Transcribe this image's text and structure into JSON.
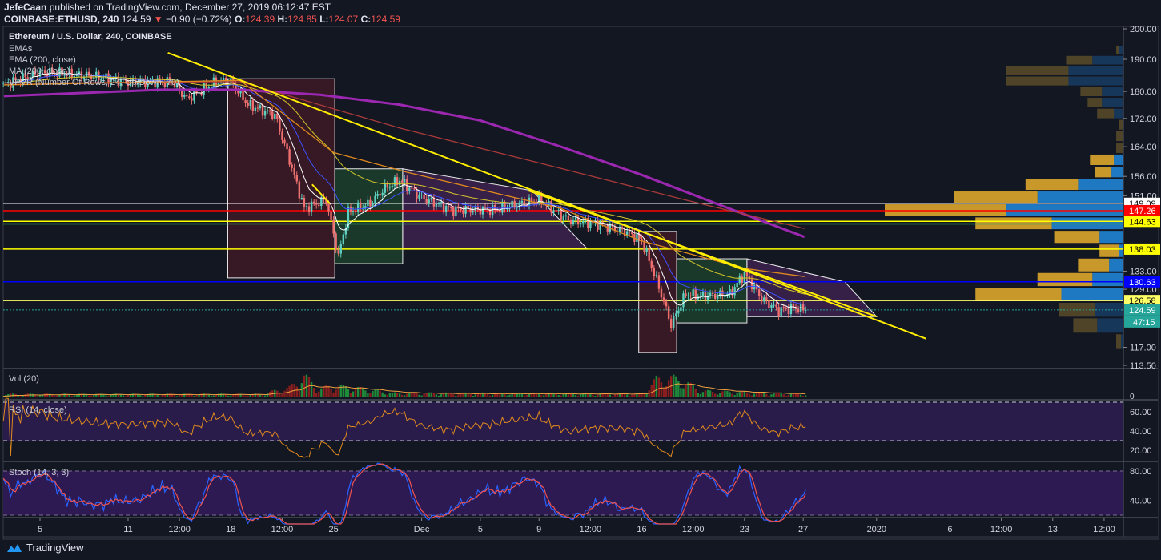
{
  "header": {
    "author": "JefeCaan",
    "published_text": "published on TradingView.com, December 27, 2019 06:12:47 EST",
    "symbol": "COINBASE:ETHUSD, 240",
    "last": "124.59",
    "change": "−0.90 (−0.72%)",
    "open_label": "O:",
    "open": "124.39",
    "high_label": "H:",
    "high": "124.85",
    "low_label": "L:",
    "low": "124.07",
    "close_label": "C:",
    "close": "124.59",
    "down_arrow_icon": "triangle-down-icon"
  },
  "legend": {
    "title": "Ethereum / U.S. Dollar, 240, COINBASE",
    "items": [
      "EMAs",
      "EMA (200, close)",
      "MA (200, close)",
      "VPVR (Number Of Rows, 24, Up/Down, 70)"
    ]
  },
  "panes": {
    "volume_label": "Vol (20)",
    "rsi_label": "RSI (14, close)",
    "stoch_label": "Stoch (14, 3, 3)"
  },
  "footer": {
    "brand": "TradingView",
    "logo_icon": "tradingview-logo-icon"
  },
  "colors": {
    "background": "#131722",
    "up": "#26a69a",
    "down": "#ef5350",
    "ma200": "#9c27b0",
    "ema200": "#e08a1e",
    "ema_mid": "#a83a3a",
    "trendline": "#ffee00",
    "vpvr_up": "#1e78c2",
    "vpvr_down": "#c8992a",
    "rsi": "#e08a1e",
    "stoch_k": "#2962ff",
    "stoch_d": "#ef5350",
    "osc_band": "#2a1c4a"
  },
  "chart_data": {
    "type": "candlestick",
    "title": "Ethereum / U.S. Dollar, 240, COINBASE",
    "y_scale": "log",
    "ylim": [
      113.5,
      200
    ],
    "y_ticks": [
      "200.00",
      "190.00",
      "180.00",
      "172.00",
      "164.00",
      "156.00",
      "151.00",
      "133.00",
      "129.00",
      "117.00",
      "113.50"
    ],
    "x_ticks": [
      {
        "label": "5",
        "date": "2019-11-05T00:00"
      },
      {
        "label": "11",
        "date": "2019-11-11T00:00"
      },
      {
        "label": "12:00",
        "date": "2019-11-14T12:00"
      },
      {
        "label": "18",
        "date": "2019-11-18T00:00"
      },
      {
        "label": "12:00",
        "date": "2019-11-21T12:00"
      },
      {
        "label": "25",
        "date": "2019-11-25T00:00"
      },
      {
        "label": "Dec",
        "date": "2019-12-01T00:00"
      },
      {
        "label": "5",
        "date": "2019-12-05T00:00"
      },
      {
        "label": "9",
        "date": "2019-12-09T00:00"
      },
      {
        "label": "12:00",
        "date": "2019-12-12T12:00"
      },
      {
        "label": "16",
        "date": "2019-12-16T00:00"
      },
      {
        "label": "12:00",
        "date": "2019-12-19T12:00"
      },
      {
        "label": "23",
        "date": "2019-12-23T00:00"
      },
      {
        "label": "27",
        "date": "2019-12-27T00:00"
      },
      {
        "label": "2020",
        "date": "2020-01-01T00:00"
      },
      {
        "label": "6",
        "date": "2020-01-06T00:00"
      },
      {
        "label": "12:00",
        "date": "2020-01-09T12:00"
      },
      {
        "label": "13",
        "date": "2020-01-13T00:00"
      },
      {
        "label": "12:00",
        "date": "2020-01-16T12:00"
      }
    ],
    "interval_hours": 4,
    "price_path": [
      [
        "2019-11-02T12:00",
        182
      ],
      [
        "2019-11-05T00:00",
        186
      ],
      [
        "2019-11-08T00:00",
        185
      ],
      [
        "2019-11-11T00:00",
        183
      ],
      [
        "2019-11-14T00:00",
        183
      ],
      [
        "2019-11-15T00:00",
        177.7
      ],
      [
        "2019-11-17T00:00",
        183
      ],
      [
        "2019-11-18T00:00",
        183
      ],
      [
        "2019-11-19T04:00",
        176
      ],
      [
        "2019-11-21T00:00",
        173
      ],
      [
        "2019-11-22T00:00",
        160.3
      ],
      [
        "2019-11-23T00:00",
        147.8
      ],
      [
        "2019-11-24T12:00",
        150
      ],
      [
        "2019-11-25T08:00",
        136.3
      ],
      [
        "2019-11-26T00:00",
        147
      ],
      [
        "2019-11-27T12:00",
        149
      ],
      [
        "2019-11-28T12:00",
        153
      ],
      [
        "2019-11-29T12:00",
        155
      ],
      [
        "2019-12-01T00:00",
        150.5
      ],
      [
        "2019-12-03T00:00",
        147.5
      ],
      [
        "2019-12-06T00:00",
        147.5
      ],
      [
        "2019-12-09T00:00",
        150
      ],
      [
        "2019-12-11T00:00",
        145
      ],
      [
        "2019-12-13T00:00",
        144
      ],
      [
        "2019-12-15T00:00",
        142
      ],
      [
        "2019-12-16T00:00",
        140
      ],
      [
        "2019-12-17T00:00",
        131
      ],
      [
        "2019-12-18T00:00",
        121.6
      ],
      [
        "2019-12-19T00:00",
        128
      ],
      [
        "2019-12-20T00:00",
        127.5
      ],
      [
        "2019-12-22T00:00",
        128
      ],
      [
        "2019-12-23T00:00",
        132.5
      ],
      [
        "2019-12-24T04:00",
        127
      ],
      [
        "2019-12-25T08:00",
        124.5
      ],
      [
        "2019-12-26T08:00",
        125
      ],
      [
        "2019-12-27T04:00",
        124.59
      ]
    ],
    "last_price": 124.59,
    "countdown": "47:15",
    "overlays": [
      {
        "name": "MA (200, close)",
        "color_key": "ma200",
        "width": 3,
        "points": [
          [
            "2019-11-02T13:00",
            178.6
          ],
          [
            "2019-11-13T04:00",
            180.5
          ],
          [
            "2019-11-18T15:00",
            180.5
          ],
          [
            "2019-11-24T02:00",
            179
          ],
          [
            "2019-11-29T13:00",
            176
          ],
          [
            "2019-12-05T00:00",
            171.4
          ],
          [
            "2019-12-10T12:00",
            164
          ],
          [
            "2019-12-15T22:00",
            156.5
          ],
          [
            "2019-12-21T09:00",
            148.6
          ],
          [
            "2019-12-27T02:00",
            140.9
          ]
        ]
      },
      {
        "name": "EMA (200, close)",
        "color_key": "ema_mid",
        "width": 1.3,
        "points": [
          [
            "2019-11-02T13:00",
            182.5
          ],
          [
            "2019-11-18T15:00",
            183
          ],
          [
            "2019-11-29T13:00",
            169.2
          ],
          [
            "2019-12-10T12:00",
            158.1
          ],
          [
            "2019-12-19T00:00",
            149.9
          ],
          [
            "2019-12-27T02:00",
            142.9
          ]
        ]
      },
      {
        "name": "EMAs",
        "color_key": "ema200",
        "width": 1.3,
        "points": [
          [
            "2019-11-02T13:00",
            182
          ],
          [
            "2019-11-18T15:00",
            183.4
          ],
          [
            "2019-11-25T00:00",
            162.4
          ],
          [
            "2019-11-30T00:00",
            157.1
          ],
          [
            "2019-12-10T12:00",
            147.8
          ],
          [
            "2019-12-15T22:00",
            140
          ],
          [
            "2019-12-23T00:00",
            133.6
          ],
          [
            "2019-12-27T02:00",
            131.8
          ]
        ]
      }
    ],
    "horizontal_lines": [
      {
        "price": 149.09,
        "label": "149.09",
        "color": "#ffffff",
        "text": "#000000"
      },
      {
        "price": 147.26,
        "label": "147.26",
        "color": "#ff0000",
        "text": "#ffffff"
      },
      {
        "price": 144.63,
        "label": "144.63",
        "color": "#ffff00",
        "text": "#000000"
      },
      {
        "price": 144.0,
        "label": "",
        "color": "#2e9e5a",
        "text": "#000000"
      },
      {
        "price": 138.03,
        "label": "138.03",
        "color": "#ffff00",
        "text": "#000000"
      },
      {
        "price": 130.63,
        "label": "130.63",
        "color": "#0000ff",
        "text": "#ffffff"
      },
      {
        "price": 126.58,
        "label": "126.58",
        "color": "#ffff66",
        "text": "#000000"
      },
      {
        "price": 124.59,
        "label": "124.59",
        "color": "#26a69a",
        "text": "#ffffff",
        "dotted": true
      }
    ],
    "drawings": [
      {
        "kind": "rect",
        "from": "2019-11-17T19:00",
        "to": "2019-11-25T02:00",
        "top": 183.9,
        "bottom": 131.5,
        "fill": "rgba(120,30,40,0.35)"
      },
      {
        "kind": "rect",
        "from": "2019-11-25T02:00",
        "to": "2019-11-29T17:00",
        "top": 158,
        "bottom": 134.7,
        "fill": "rgba(40,120,60,0.35)"
      },
      {
        "kind": "poly",
        "points": [
          [
            "2019-11-29T17:00",
            158
          ],
          [
            "2019-12-08T13:00",
            152.3
          ],
          [
            "2019-12-12T06:00",
            138.2
          ],
          [
            "2019-11-29T17:00",
            138.2
          ]
        ],
        "fill": "rgba(120,50,140,0.35)"
      },
      {
        "kind": "rect",
        "from": "2019-12-15T19:00",
        "to": "2019-12-18T09:00",
        "top": 142.2,
        "bottom": 116,
        "fill": "rgba(120,30,40,0.35)"
      },
      {
        "kind": "rect",
        "from": "2019-12-18T09:00",
        "to": "2019-12-23T04:00",
        "top": 135.8,
        "bottom": 121.9,
        "fill": "rgba(40,120,60,0.35)"
      },
      {
        "kind": "poly",
        "points": [
          [
            "2019-12-23T04:00",
            135.8
          ],
          [
            "2019-12-29T20:00",
            130.6
          ],
          [
            "2020-01-01T00:00",
            123.2
          ],
          [
            "2019-12-23T04:00",
            123.2
          ]
        ],
        "fill": "rgba(120,50,140,0.35)"
      },
      {
        "kind": "line",
        "points": [
          [
            "2019-11-13T17:00",
            192.1
          ],
          [
            "2020-01-04T09:00",
            118.7
          ]
        ]
      },
      {
        "kind": "line",
        "points": [
          [
            "2019-12-08T07:00",
            152.3
          ],
          [
            "2020-01-01T00:00",
            123.2
          ]
        ]
      },
      {
        "kind": "line",
        "points": [
          [
            "2019-11-23T13:00",
            153.9
          ],
          [
            "2019-11-24T18:00",
            149
          ]
        ]
      }
    ],
    "vpvr": {
      "price_low": 116.5,
      "price_high": 194.6,
      "rows_top_to_bottom": [
        {
          "up": 2,
          "down": 1,
          "va": false
        },
        {
          "up": 13,
          "down": 11,
          "va": false
        },
        {
          "up": 23,
          "down": 26,
          "va": false
        },
        {
          "up": 23,
          "down": 26,
          "va": false
        },
        {
          "up": 9,
          "down": 9,
          "va": false
        },
        {
          "up": 9,
          "down": 6,
          "va": false
        },
        {
          "up": 4,
          "down": 7,
          "va": false
        },
        {
          "up": 0,
          "down": 2,
          "va": false
        },
        {
          "up": 0,
          "down": 3,
          "va": false
        },
        {
          "up": 0,
          "down": 3,
          "va": false
        },
        {
          "up": 4,
          "down": 10,
          "va": true
        },
        {
          "up": 5,
          "down": 7,
          "va": true
        },
        {
          "up": 19,
          "down": 22,
          "va": true
        },
        {
          "up": 36,
          "down": 35,
          "va": true
        },
        {
          "up": 49,
          "down": 51,
          "va": true
        },
        {
          "up": 30,
          "down": 32,
          "va": true
        },
        {
          "up": 10,
          "down": 19,
          "va": true
        },
        {
          "up": 2,
          "down": 8,
          "va": true
        },
        {
          "up": 6,
          "down": 13,
          "va": true
        },
        {
          "up": 13,
          "down": 23,
          "va": true
        },
        {
          "up": 26,
          "down": 36,
          "va": true
        },
        {
          "up": 12,
          "down": 15,
          "va": false
        },
        {
          "up": 11,
          "down": 10,
          "va": false
        },
        {
          "up": 1,
          "down": 2,
          "va": false
        }
      ]
    },
    "volume": {
      "axis_ticks": [
        "0"
      ],
      "levels": [
        [
          "2019-11-02T12:00",
          15
        ],
        [
          "2019-11-20T00:00",
          15
        ],
        [
          "2019-11-22T00:00",
          45
        ],
        [
          "2019-11-23T00:00",
          100
        ],
        [
          "2019-11-24T00:00",
          40
        ],
        [
          "2019-11-25T00:00",
          55
        ],
        [
          "2019-11-27T00:00",
          40
        ],
        [
          "2019-11-29T00:00",
          20
        ],
        [
          "2019-12-16T00:00",
          18
        ],
        [
          "2019-12-17T00:00",
          85
        ],
        [
          "2019-12-18T12:00",
          90
        ],
        [
          "2019-12-20T00:00",
          30
        ],
        [
          "2019-12-27T04:00",
          15
        ]
      ]
    },
    "rsi": {
      "axis_ticks": [
        "60.00",
        "40.00",
        "20.00"
      ],
      "bands": [
        70,
        30
      ],
      "ylim": [
        10,
        75
      ]
    },
    "stoch": {
      "axis_ticks": [
        "80.00",
        "40.00"
      ],
      "bands": [
        80,
        20
      ],
      "ylim": [
        0,
        100
      ]
    }
  }
}
